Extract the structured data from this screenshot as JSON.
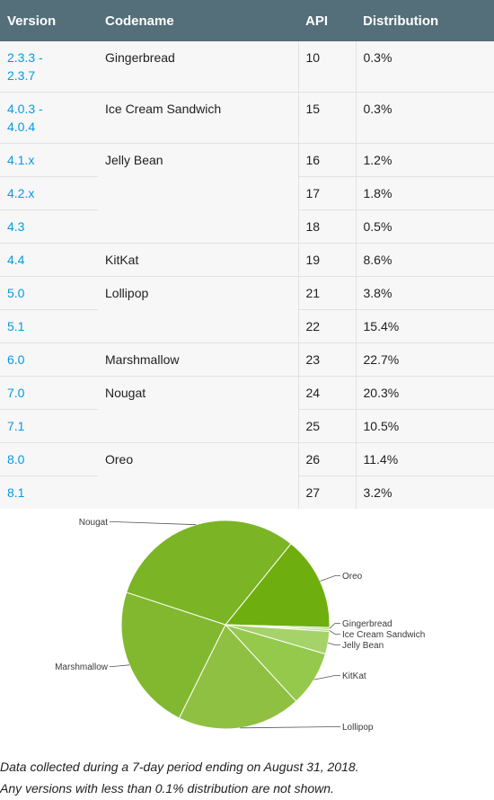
{
  "table": {
    "headers": {
      "version": "Version",
      "codename": "Codename",
      "api": "API",
      "distribution": "Distribution"
    },
    "rows": [
      {
        "version": "2.3.3 -\n2.3.7",
        "codename": "Gingerbread",
        "api": "10",
        "distribution": "0.3%"
      },
      {
        "version": "4.0.3 -\n4.0.4",
        "codename": "Ice Cream Sandwich",
        "api": "15",
        "distribution": "0.3%"
      },
      {
        "version": "4.1.x",
        "codename": "Jelly Bean",
        "api": "16",
        "distribution": "1.2%"
      },
      {
        "version": "4.2.x",
        "codename": "",
        "api": "17",
        "distribution": "1.8%"
      },
      {
        "version": "4.3",
        "codename": "",
        "api": "18",
        "distribution": "0.5%"
      },
      {
        "version": "4.4",
        "codename": "KitKat",
        "api": "19",
        "distribution": "8.6%"
      },
      {
        "version": "5.0",
        "codename": "Lollipop",
        "api": "21",
        "distribution": "3.8%"
      },
      {
        "version": "5.1",
        "codename": "",
        "api": "22",
        "distribution": "15.4%"
      },
      {
        "version": "6.0",
        "codename": "Marshmallow",
        "api": "23",
        "distribution": "22.7%"
      },
      {
        "version": "7.0",
        "codename": "Nougat",
        "api": "24",
        "distribution": "20.3%"
      },
      {
        "version": "7.1",
        "codename": "",
        "api": "25",
        "distribution": "10.5%"
      },
      {
        "version": "8.0",
        "codename": "Oreo",
        "api": "26",
        "distribution": "11.4%"
      },
      {
        "version": "8.1",
        "codename": "",
        "api": "27",
        "distribution": "3.2%"
      }
    ]
  },
  "chart_data": {
    "type": "pie",
    "categories": [
      "Oreo",
      "Gingerbread",
      "Ice Cream Sandwich",
      "Jelly Bean",
      "KitKat",
      "Lollipop",
      "Marshmallow",
      "Nougat"
    ],
    "values": [
      14.6,
      0.3,
      0.3,
      3.5,
      8.6,
      19.2,
      22.7,
      30.8
    ],
    "colors": [
      "#6eae0f",
      "#a6d26a",
      "#a6d26a",
      "#a6d26a",
      "#95c94b",
      "#8fc041",
      "#82b82f",
      "#7bb425"
    ]
  },
  "footnotes": {
    "line1": "Data collected during a 7-day period ending on August 31, 2018.",
    "line2": "Any versions with less than 0.1% distribution are not shown."
  }
}
